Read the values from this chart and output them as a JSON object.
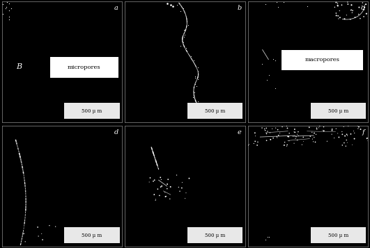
{
  "figsize": [
    5.31,
    3.57
  ],
  "dpi": 100,
  "nrows": 2,
  "ncols": 3,
  "bg_color": "#000000",
  "panel_labels": [
    "a",
    "b",
    "c",
    "d",
    "e",
    "f"
  ],
  "scale_bar_text": "500 μ m",
  "panel_a_label": "micropores",
  "panel_c_label": "macropores",
  "panel_a_extra": "B",
  "border_color": "#777777",
  "label_color": "#ffffff",
  "scale_bg_color": "#e8e8e8",
  "scale_text_color": "#000000",
  "annotation_bg": "#ffffff",
  "annotation_text": "#000000",
  "outer_border": "#555555"
}
